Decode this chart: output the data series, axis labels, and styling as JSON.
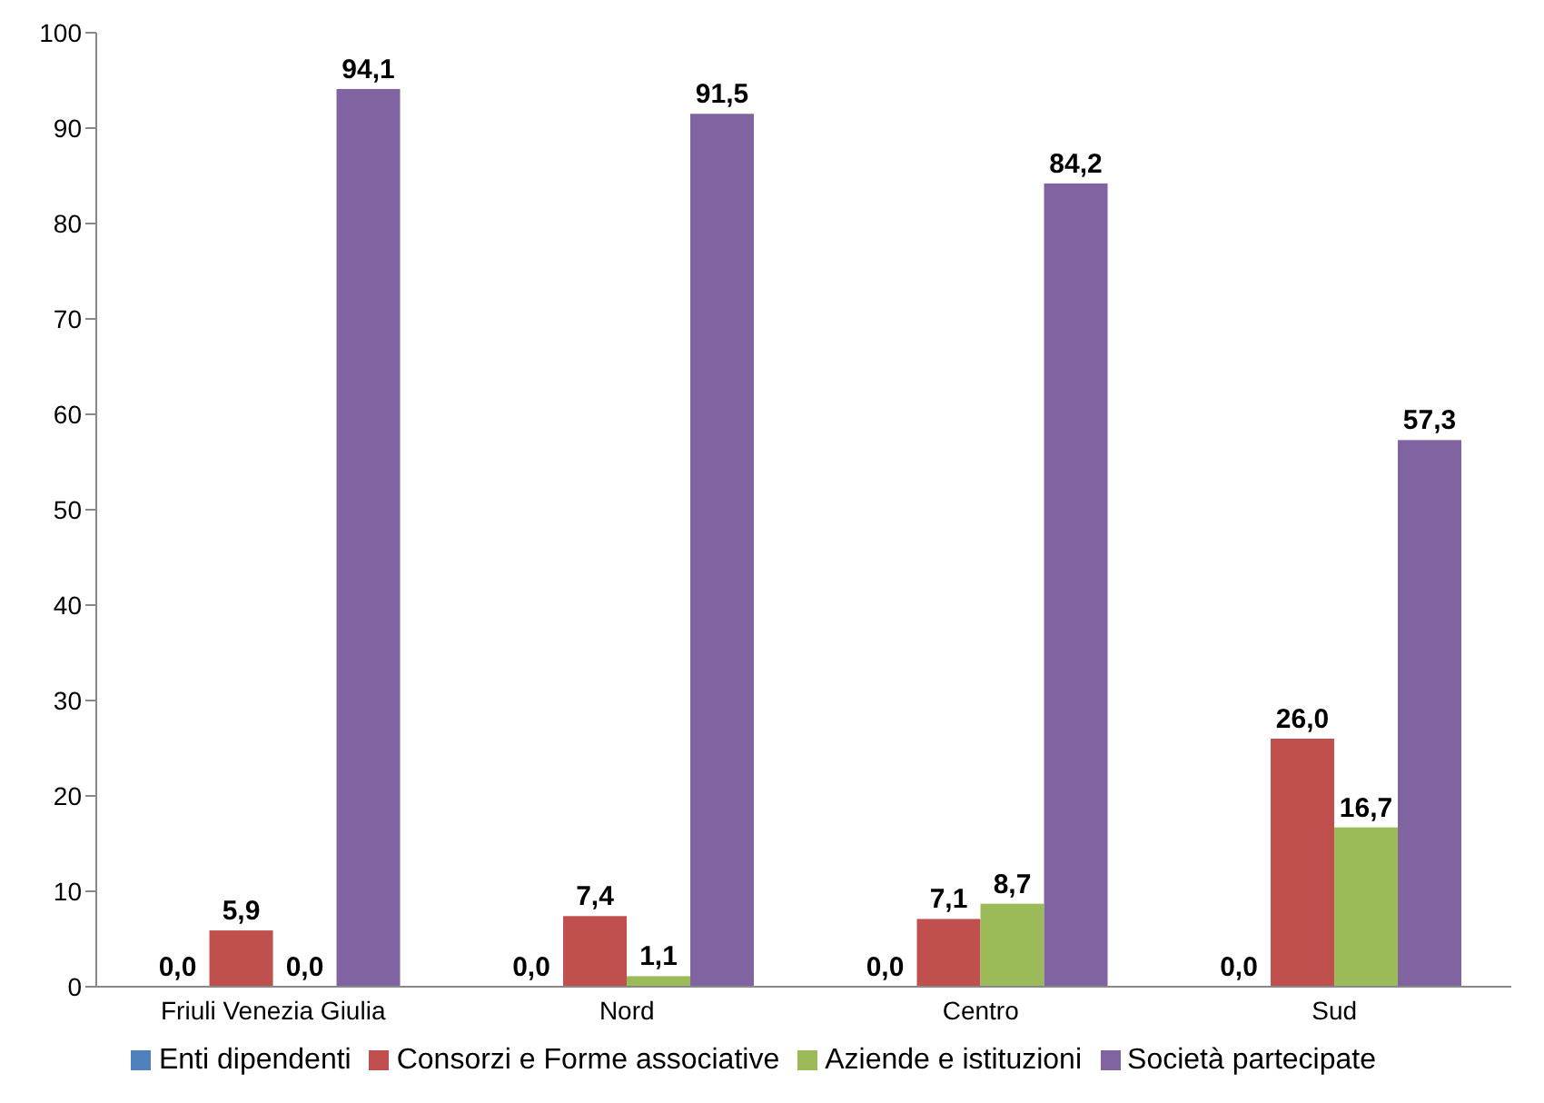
{
  "chart_data": {
    "type": "bar",
    "categories": [
      "Friuli Venezia Giulia",
      "Nord",
      "Centro",
      "Sud"
    ],
    "series": [
      {
        "name": "Enti dipendenti",
        "color": "#4f81bd",
        "values": [
          0,
          0,
          0,
          0
        ],
        "value_labels": [
          "0,0",
          "0,0",
          "0,0",
          "0,0"
        ]
      },
      {
        "name": "Consorzi e Forme associative",
        "color": "#c0504d",
        "values": [
          5.9,
          7.4,
          7.1,
          26.0
        ],
        "value_labels": [
          "5,9",
          "7,4",
          "7,1",
          "26,0"
        ]
      },
      {
        "name": "Aziende e istituzioni",
        "color": "#9bbb59",
        "values": [
          0,
          1.1,
          8.7,
          16.7
        ],
        "value_labels": [
          "0,0",
          "1,1",
          "8,7",
          "16,7"
        ]
      },
      {
        "name": "Società partecipate",
        "color": "#8064a2",
        "values": [
          94.1,
          91.5,
          84.2,
          57.3
        ],
        "value_labels": [
          "94,1",
          "91,5",
          "84,2",
          "57,3"
        ]
      }
    ],
    "ylim": [
      0,
      100
    ],
    "yticks": [
      0,
      10,
      20,
      30,
      40,
      50,
      60,
      70,
      80,
      90,
      100
    ],
    "grid": false,
    "legend": "bottom"
  }
}
